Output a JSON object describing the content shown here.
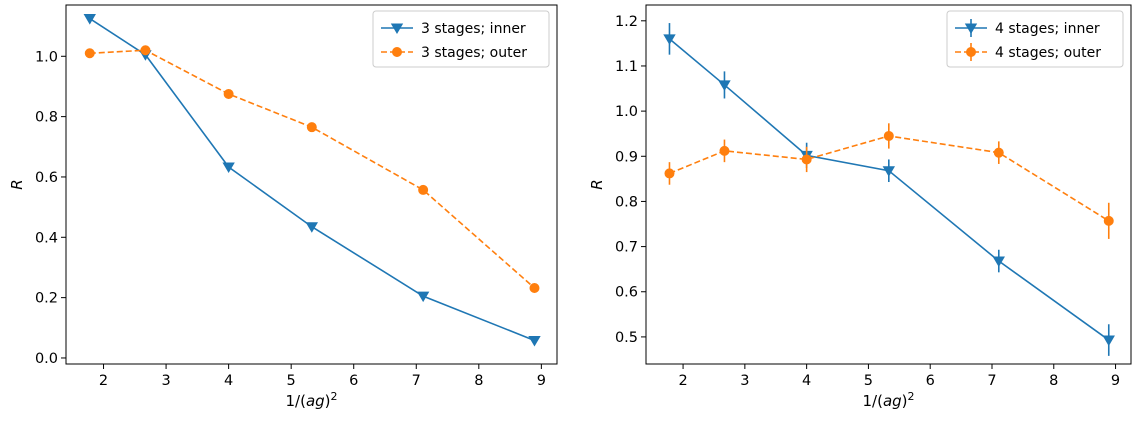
{
  "chart_data": [
    {
      "type": "line",
      "xlabel_prefix": "1/(",
      "xlabel_italic": "ag",
      "xlabel_suffix": ")",
      "xlabel_sup": "2",
      "ylabel": "R",
      "xlim": [
        1.4,
        9.25
      ],
      "ylim": [
        -0.02,
        1.17
      ],
      "xticks": [
        2,
        3,
        4,
        5,
        6,
        7,
        8,
        9
      ],
      "yticks": [
        0.0,
        0.2,
        0.4,
        0.6,
        0.8,
        1.0
      ],
      "ytick_format": 1,
      "grid": false,
      "legend_position": "top-right",
      "series": [
        {
          "name": "3 stages; inner",
          "color": "#1f77b4",
          "marker": "triangle-down",
          "linestyle": "solid",
          "x": [
            1.78,
            2.67,
            4.0,
            5.33,
            7.11,
            8.89
          ],
          "y": [
            1.125,
            1.005,
            0.633,
            0.435,
            0.205,
            0.058
          ],
          "err": [
            0,
            0,
            0,
            0,
            0,
            0
          ]
        },
        {
          "name": "3 stages; outer",
          "color": "#ff7f0e",
          "marker": "circle",
          "linestyle": "dashed",
          "x": [
            1.78,
            2.67,
            4.0,
            5.33,
            7.11,
            8.89
          ],
          "y": [
            1.01,
            1.02,
            0.875,
            0.765,
            0.557,
            0.232
          ],
          "err": [
            0,
            0,
            0,
            0,
            0,
            0
          ]
        }
      ]
    },
    {
      "type": "line",
      "xlabel_prefix": "1/(",
      "xlabel_italic": "ag",
      "xlabel_suffix": ")",
      "xlabel_sup": "2",
      "ylabel": "R",
      "xlim": [
        1.4,
        9.25
      ],
      "ylim": [
        0.44,
        1.235
      ],
      "xticks": [
        2,
        3,
        4,
        5,
        6,
        7,
        8,
        9
      ],
      "yticks": [
        0.5,
        0.6,
        0.7,
        0.8,
        0.9,
        1.0,
        1.1,
        1.2
      ],
      "ytick_format": 1,
      "grid": false,
      "legend_position": "top-right",
      "series": [
        {
          "name": "4 stages; inner",
          "color": "#1f77b4",
          "marker": "triangle-down",
          "linestyle": "solid",
          "x": [
            1.78,
            2.67,
            4.0,
            5.33,
            7.11,
            8.89
          ],
          "y": [
            1.16,
            1.058,
            0.902,
            0.868,
            0.668,
            0.493
          ],
          "err": [
            0.035,
            0.03,
            0.028,
            0.025,
            0.025,
            0.035
          ]
        },
        {
          "name": "4 stages; outer",
          "color": "#ff7f0e",
          "marker": "circle",
          "linestyle": "dashed",
          "x": [
            1.78,
            2.67,
            4.0,
            5.33,
            7.11,
            8.89
          ],
          "y": [
            0.862,
            0.912,
            0.893,
            0.945,
            0.908,
            0.757
          ],
          "err": [
            0.025,
            0.025,
            0.028,
            0.028,
            0.025,
            0.04
          ]
        }
      ]
    }
  ]
}
